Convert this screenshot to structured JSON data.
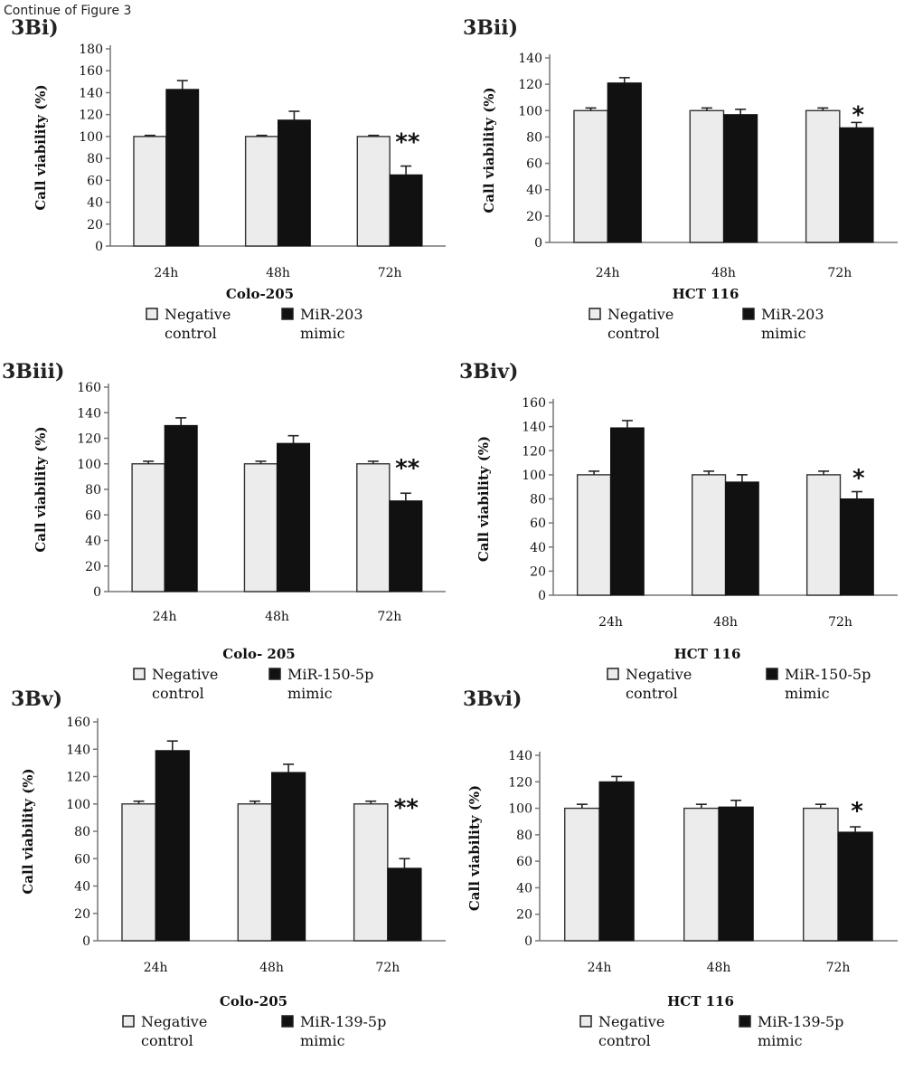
{
  "figure": {
    "caption": "Continue of Figure 3",
    "colors": {
      "negative_control": "#ececec",
      "mimic": "#111111",
      "axis": "#777777"
    }
  },
  "chart_data": [
    {
      "type": "bar",
      "panel": "3Bi)",
      "title": "",
      "xlabel": "Colo-205",
      "ylabel": "Call viability (%)",
      "ylim": [
        0,
        180
      ],
      "yticks": [
        0,
        20,
        40,
        60,
        80,
        100,
        120,
        140,
        160,
        180
      ],
      "categories": [
        "24h",
        "48h",
        "72h"
      ],
      "series": [
        {
          "name": "Negative control",
          "legend_lines": [
            "Negative",
            "control"
          ],
          "values": [
            100,
            100,
            100
          ],
          "errors": [
            1,
            1,
            1
          ]
        },
        {
          "name": "MiR-203 mimic",
          "legend_lines": [
            "MiR-203",
            "mimic"
          ],
          "values": [
            143,
            115,
            65
          ],
          "errors": [
            8,
            8,
            8
          ]
        }
      ],
      "annotations": [
        {
          "category": "72h",
          "text": "**"
        }
      ]
    },
    {
      "type": "bar",
      "panel": "3Bii)",
      "title": "",
      "xlabel": "HCT 116",
      "ylabel": "Call viability (%)",
      "ylim": [
        0,
        140
      ],
      "yticks": [
        0,
        20,
        40,
        60,
        80,
        100,
        120,
        140
      ],
      "categories": [
        "24h",
        "48h",
        "72h"
      ],
      "series": [
        {
          "name": "Negative control",
          "legend_lines": [
            "Negative",
            "control"
          ],
          "values": [
            100,
            100,
            100
          ],
          "errors": [
            2,
            2,
            2
          ]
        },
        {
          "name": "MiR-203 mimic",
          "legend_lines": [
            "MiR-203",
            "mimic"
          ],
          "values": [
            121,
            97,
            87
          ],
          "errors": [
            4,
            4,
            4
          ]
        }
      ],
      "annotations": [
        {
          "category": "72h",
          "text": "*"
        }
      ]
    },
    {
      "type": "bar",
      "panel": "3Biii)",
      "title": "",
      "xlabel": "Colo- 205",
      "ylabel": "Call viability (%)",
      "ylim": [
        0,
        160
      ],
      "yticks": [
        0,
        20,
        40,
        60,
        80,
        100,
        120,
        140,
        160
      ],
      "categories": [
        "24h",
        "48h",
        "72h"
      ],
      "series": [
        {
          "name": "Negative control",
          "legend_lines": [
            "Negative",
            "control"
          ],
          "values": [
            100,
            100,
            100
          ],
          "errors": [
            2,
            2,
            2
          ]
        },
        {
          "name": "MiR-150-5p mimic",
          "legend_lines": [
            "MiR-150-5p",
            "mimic"
          ],
          "values": [
            130,
            116,
            71
          ],
          "errors": [
            6,
            6,
            6
          ]
        }
      ],
      "annotations": [
        {
          "category": "72h",
          "text": "**"
        }
      ]
    },
    {
      "type": "bar",
      "panel": "3Biv)",
      "title": "",
      "xlabel": "HCT 116",
      "ylabel": "Call viability (%)",
      "ylim": [
        0,
        160
      ],
      "yticks": [
        0,
        20,
        40,
        60,
        80,
        100,
        120,
        140,
        160
      ],
      "categories": [
        "24h",
        "48h",
        "72h"
      ],
      "series": [
        {
          "name": "Negative control",
          "legend_lines": [
            "Negative",
            "control"
          ],
          "values": [
            100,
            100,
            100
          ],
          "errors": [
            3,
            3,
            3
          ]
        },
        {
          "name": "MiR-150-5p mimic",
          "legend_lines": [
            "MiR-150-5p",
            "mimic"
          ],
          "values": [
            139,
            94,
            80
          ],
          "errors": [
            6,
            6,
            6
          ]
        }
      ],
      "annotations": [
        {
          "category": "72h",
          "text": "*"
        }
      ]
    },
    {
      "type": "bar",
      "panel": "3Bv)",
      "title": "",
      "xlabel": "Colo-205",
      "ylabel": "Call viability (%)",
      "ylim": [
        0,
        160
      ],
      "yticks": [
        0,
        20,
        40,
        60,
        80,
        100,
        120,
        140,
        160
      ],
      "categories": [
        "24h",
        "48h",
        "72h"
      ],
      "series": [
        {
          "name": "Negative control",
          "legend_lines": [
            "Negative",
            "control"
          ],
          "values": [
            100,
            100,
            100
          ],
          "errors": [
            2,
            2,
            2
          ]
        },
        {
          "name": "MiR-139-5p mimic",
          "legend_lines": [
            "MiR-139-5p",
            "mimic"
          ],
          "values": [
            139,
            123,
            53
          ],
          "errors": [
            7,
            6,
            7
          ]
        }
      ],
      "annotations": [
        {
          "category": "72h",
          "text": "**"
        }
      ]
    },
    {
      "type": "bar",
      "panel": "3Bvi)",
      "title": "",
      "xlabel": "HCT 116",
      "ylabel": "Call viability (%)",
      "ylim": [
        0,
        140
      ],
      "yticks": [
        0,
        20,
        40,
        60,
        80,
        100,
        120,
        140
      ],
      "categories": [
        "24h",
        "48h",
        "72h"
      ],
      "series": [
        {
          "name": "Negative control",
          "legend_lines": [
            "Negative",
            "control"
          ],
          "values": [
            100,
            100,
            100
          ],
          "errors": [
            3,
            3,
            3
          ]
        },
        {
          "name": "MiR-139-5p mimic",
          "legend_lines": [
            "MiR-139-5p",
            "mimic"
          ],
          "values": [
            120,
            101,
            82
          ],
          "errors": [
            4,
            5,
            4
          ]
        }
      ],
      "annotations": [
        {
          "category": "72h",
          "text": "*"
        }
      ]
    }
  ]
}
